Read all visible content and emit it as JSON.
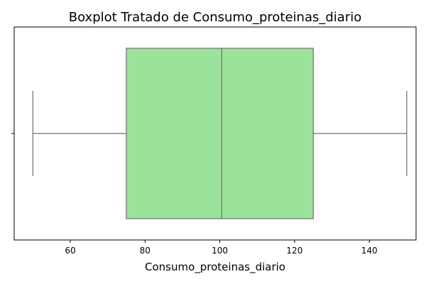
{
  "chart_data": {
    "type": "boxplot",
    "title": "Boxplot Tratado de Consumo_proteinas_diario",
    "xlabel": "Consumo_proteinas_diario",
    "ylabel": "",
    "orientation": "horizontal",
    "xlim": [
      45,
      152.5
    ],
    "xticks": [
      60,
      80,
      100,
      120,
      140
    ],
    "grid": false,
    "box": {
      "min": 50,
      "q1": 75,
      "median": 100.5,
      "q3": 125,
      "max": 150
    },
    "colors": {
      "box_fill": "#9be39b",
      "line": "#6e6e6e"
    }
  }
}
